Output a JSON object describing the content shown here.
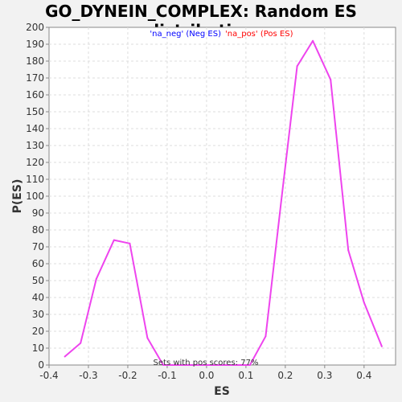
{
  "chart_data": {
    "type": "line",
    "title": "GO_DYNEIN_COMPLEX: Random ES distribution",
    "xlabel": "ES",
    "ylabel": "P(ES)",
    "xlim": [
      -0.4,
      0.48
    ],
    "ylim": [
      0,
      200
    ],
    "x_ticks": [
      -0.4,
      -0.3,
      -0.2,
      -0.1,
      0.0,
      0.1,
      0.2,
      0.3,
      0.4
    ],
    "x_tick_labels": [
      "-0.4",
      "-0.3",
      "-0.2",
      "-0.1",
      "0.0",
      "0.1",
      "0.2",
      "0.3",
      "0.4"
    ],
    "y_ticks": [
      0,
      10,
      20,
      30,
      40,
      50,
      60,
      70,
      80,
      90,
      100,
      110,
      120,
      130,
      140,
      150,
      160,
      170,
      180,
      190,
      200
    ],
    "y_tick_labels": [
      "0",
      "10",
      "20",
      "30",
      "40",
      "50",
      "60",
      "70",
      "80",
      "90",
      "100",
      "110",
      "120",
      "130",
      "140",
      "150",
      "160",
      "170",
      "180",
      "190",
      "200"
    ],
    "grid": true,
    "legend_placement": "top-center",
    "legend": [
      {
        "text": "'na_neg' (Neg ES)",
        "color": "#0000ff"
      },
      {
        "text": "'na_pos' (Pos ES)",
        "color": "#ff0000"
      }
    ],
    "annotation": "Sets with pos scores: 77%",
    "series": [
      {
        "color": "#ee44ee",
        "x": [
          -0.36,
          -0.32,
          -0.28,
          -0.235,
          -0.195,
          -0.15,
          -0.11,
          -0.07,
          0.11,
          0.15,
          0.19,
          0.23,
          0.27,
          0.315,
          0.36,
          0.4,
          0.445
        ],
        "y": [
          5,
          13,
          51,
          74,
          72,
          16,
          0,
          0,
          0,
          17,
          98,
          177,
          192,
          169,
          68,
          37,
          11
        ]
      }
    ]
  }
}
